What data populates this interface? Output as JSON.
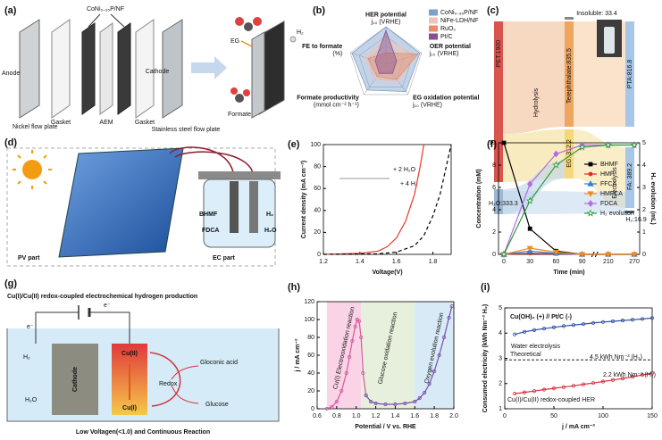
{
  "panels": {
    "a": {
      "label": "(a)",
      "catalyst": "CoNi₀.₃₅P/NF",
      "anode": "Anode",
      "nickel_plate": "Nickel flow plate",
      "gasket_1": "Gasket",
      "aem": "AEM",
      "gasket_2": "Gasket",
      "cathode": "Cathode",
      "steel_plate": "Stainless steel flow plate",
      "eg": "EG",
      "h2": "H₂",
      "formate": "Formate"
    },
    "b": {
      "label": "(b)"
    },
    "c": {
      "label": "(c)",
      "pet": "PET:1900",
      "insoluble": "Insoluble: 33.4",
      "terephthalate": "Terephthalate:835.5",
      "eg": "EG: 312.2",
      "h2o": "H₂O:333.3",
      "hydrolysis": "Hydrolysis",
      "electrolysis": "Electrolysis",
      "pta": "PTA:816.8",
      "fa": "FA: 389.2",
      "h2": "H₂:16.9"
    },
    "d": {
      "label": "(d)",
      "pv": "PV part",
      "ec": "EC part",
      "bhmf": "BHMF",
      "fdca": "FDCA",
      "h2": "H₂",
      "h2o": "H₂O"
    },
    "e": {
      "label": "(e)",
      "scheme_1": "+ 2 H₂O",
      "scheme_2": "+ 4 H₂"
    },
    "f": {
      "label": "(f)"
    },
    "g": {
      "label": "(g)",
      "title": "Cu(I)/Cu(II) redox-coupled electrochemical hydrogen production",
      "e1": "e⁻",
      "e2": "e⁻",
      "h2": "H₂",
      "h2o": "H₂O",
      "cathode": "Cathode",
      "cu2": "Cu(II)",
      "cu1": "Cu(I)",
      "redox": "Redox",
      "gluconic": "Gloconic acid",
      "glucose": "Glucose",
      "footer": "Low Voltagen(<1.0) and Continuous Reaction"
    },
    "h": {
      "label": "(h)"
    },
    "i": {
      "label": "(i)"
    }
  },
  "chart_data": [
    {
      "type": "radar",
      "rlim": [
        0,
        1
      ],
      "axes": [
        {
          "name": "HER potential",
          "unit": "j₁₀ (VRHE)"
        },
        {
          "name": "OER potential",
          "unit": "j₁₀ (VRHE)"
        },
        {
          "name": "EG oxidation potential",
          "unit": "j₁₀ (VRHE)"
        },
        {
          "name": "Formate productivity",
          "unit": "(mmol cm⁻² h⁻¹)"
        },
        {
          "name": "FE to formate",
          "unit": "(%)"
        }
      ],
      "series": [
        {
          "name": "CoNi₀.₃₅P/NF",
          "color": "#7c9fcc",
          "values": [
            1,
            0.95,
            0.9,
            0.85,
            0.95
          ]
        },
        {
          "name": "NiFe-LDH/NF",
          "color": "#f1c3b6",
          "values": [
            0.7,
            0.8,
            0.6,
            0.5,
            0.6
          ]
        },
        {
          "name": "RuO₂",
          "color": "#e88c69",
          "values": [
            0.3,
            0.9,
            0.5,
            0.4,
            0.5
          ]
        },
        {
          "name": "Pt/C",
          "color": "#8a4f8f",
          "values": [
            0.9,
            0.3,
            0.3,
            0.3,
            0.3
          ]
        }
      ]
    },
    {
      "type": "line",
      "xlabel": "Voltage(V)",
      "ylabel": "Current density (mA cm⁻²)",
      "xlim": [
        1.2,
        1.9
      ],
      "ylim": [
        0,
        100
      ],
      "xticks": [
        1.2,
        1.4,
        1.6,
        1.8
      ],
      "yticks": [
        0,
        20,
        40,
        60,
        80,
        100
      ],
      "series": [
        {
          "color": "#e8392d",
          "x": [
            1.2,
            1.4,
            1.5,
            1.55,
            1.6,
            1.65,
            1.7,
            1.73,
            1.75
          ],
          "values": [
            0,
            1,
            3,
            7,
            15,
            30,
            55,
            80,
            100
          ]
        },
        {
          "color": "#000000",
          "dashed": true,
          "x": [
            1.2,
            1.5,
            1.6,
            1.7,
            1.75,
            1.8,
            1.84,
            1.88,
            1.9
          ],
          "values": [
            0,
            0.5,
            2,
            8,
            17,
            35,
            55,
            85,
            100
          ]
        }
      ]
    },
    {
      "type": "line",
      "xlabel": "Time (min)",
      "ylabel": "Concentration (mM)",
      "y2label": "H₂ evolution (mL)",
      "categories": [
        "0",
        "30",
        "60",
        "90",
        "210",
        "270"
      ],
      "ylim": [
        0,
        10
      ],
      "yticks": [
        0,
        2,
        4,
        6,
        8,
        10
      ],
      "y2lim": [
        0,
        5
      ],
      "y2ticks": [
        0,
        1,
        2,
        3,
        4,
        5
      ],
      "legend": "upper right",
      "series": [
        {
          "name": "BHMF",
          "color": "#000000",
          "marker": "square",
          "values": [
            10,
            2.3,
            0.3,
            0,
            0,
            0
          ]
        },
        {
          "name": "HMF",
          "color": "#e8262a",
          "marker": "circle",
          "values": [
            0,
            0.1,
            0.05,
            0,
            0,
            0
          ]
        },
        {
          "name": "FFCA",
          "color": "#2a7de1",
          "marker": "triangle",
          "values": [
            0,
            0.3,
            0.1,
            0,
            0,
            0
          ]
        },
        {
          "name": "HMFCA",
          "color": "#f08c1a",
          "marker": "triangle-down",
          "values": [
            0,
            0.55,
            0.2,
            0,
            0,
            0
          ]
        },
        {
          "name": "FDCA",
          "color": "#b46de0",
          "marker": "diamond",
          "values": [
            0,
            6.3,
            9,
            9.8,
            9.8,
            9.8
          ]
        },
        {
          "name": "H₂ evolution",
          "color": "#2e9a3c",
          "marker": "star",
          "axis": "y2",
          "values": [
            0,
            2.4,
            4,
            4.8,
            4.9,
            4.9
          ]
        }
      ]
    },
    {
      "type": "line",
      "xlabel": "Potential / V vs. RHE",
      "ylabel": "j / mA cm⁻²",
      "xlim": [
        0.6,
        2.0
      ],
      "ylim": [
        0,
        120
      ],
      "xticks": [
        0.6,
        0.8,
        {
          "value": 1,
          "label": "1.0"
        },
        1.2,
        1.4,
        1.6,
        1.8,
        {
          "value": 2,
          "label": "2.0"
        }
      ],
      "yticks": [
        0,
        20,
        40,
        60,
        80,
        100,
        120
      ],
      "regions": [
        {
          "from": 0.7,
          "to": 1.05,
          "color": "#fbd3e6",
          "text_color": "#d6336c",
          "label": "Cu(I) Electrooxidation reaction"
        },
        {
          "from": 1.05,
          "to": 1.6,
          "color": "#e6f0dc",
          "text_color": "#5b8c3a",
          "label": "Glucose oxidation reaction"
        },
        {
          "from": 1.6,
          "to": 2.0,
          "color": "#d7eaf5",
          "text_color": "#2f5fb0",
          "label": "Oxygen evolution reaction"
        }
      ],
      "series": [
        {
          "color": "#d65aa0",
          "marker": "ring",
          "x": [
            0.7,
            0.75,
            0.8,
            0.85,
            0.9,
            0.93,
            0.96,
            0.99,
            1.01,
            1.03,
            1.05,
            1.07,
            1.1
          ],
          "values": [
            0,
            2,
            8,
            20,
            40,
            58,
            76,
            92,
            100,
            98,
            80,
            40,
            15
          ]
        },
        {
          "color": "#7b4fb0",
          "marker": "ring",
          "x": [
            1.1,
            1.15,
            1.2,
            1.3,
            1.4,
            1.5,
            1.6,
            1.65,
            1.7,
            1.75,
            1.8,
            1.85,
            1.9,
            1.95,
            1.98
          ],
          "values": [
            15,
            8,
            6,
            5,
            5,
            6,
            8,
            12,
            18,
            28,
            42,
            60,
            80,
            102,
            115
          ]
        }
      ]
    },
    {
      "type": "line",
      "subtitle": "Cu(OH)₂ (+) // Pt/C (-)",
      "xlabel": "j / mA cm⁻²",
      "ylabel": "Consumed electricity (kWh Nm⁻³ H₂)",
      "xlim": [
        0,
        150
      ],
      "ylim": [
        1,
        5
      ],
      "xticks": [
        0,
        50,
        100,
        150
      ],
      "yticks": [
        1,
        2,
        3,
        4,
        5
      ],
      "reference": {
        "value": 2.94,
        "label": "Theoretical"
      },
      "annotations": [
        "4.5 kWh Nm⁻³ (H₂)",
        "2.2 kWh Nm⁻³ (H₂)"
      ],
      "series": [
        {
          "name": "Water electrolysis",
          "color": "#2d4fa1",
          "marker": "ring",
          "x": [
            10,
            20,
            30,
            40,
            50,
            60,
            70,
            80,
            90,
            100,
            110,
            120,
            130,
            140,
            150
          ],
          "values": [
            3.95,
            4.05,
            4.12,
            4.18,
            4.23,
            4.28,
            4.32,
            4.36,
            4.4,
            4.44,
            4.47,
            4.5,
            4.53,
            4.56,
            4.6
          ]
        },
        {
          "name": "Cu(I)/Cu(II) redox-coupled HER",
          "color": "#d9303f",
          "marker": "ring",
          "x": [
            10,
            20,
            30,
            40,
            50,
            60,
            70,
            80,
            90,
            100,
            110,
            120,
            130,
            140,
            150
          ],
          "values": [
            1.6,
            1.65,
            1.7,
            1.76,
            1.81,
            1.86,
            1.91,
            1.97,
            2.02,
            2.08,
            2.14,
            2.2,
            2.27,
            2.34,
            2.42
          ]
        }
      ]
    }
  ]
}
